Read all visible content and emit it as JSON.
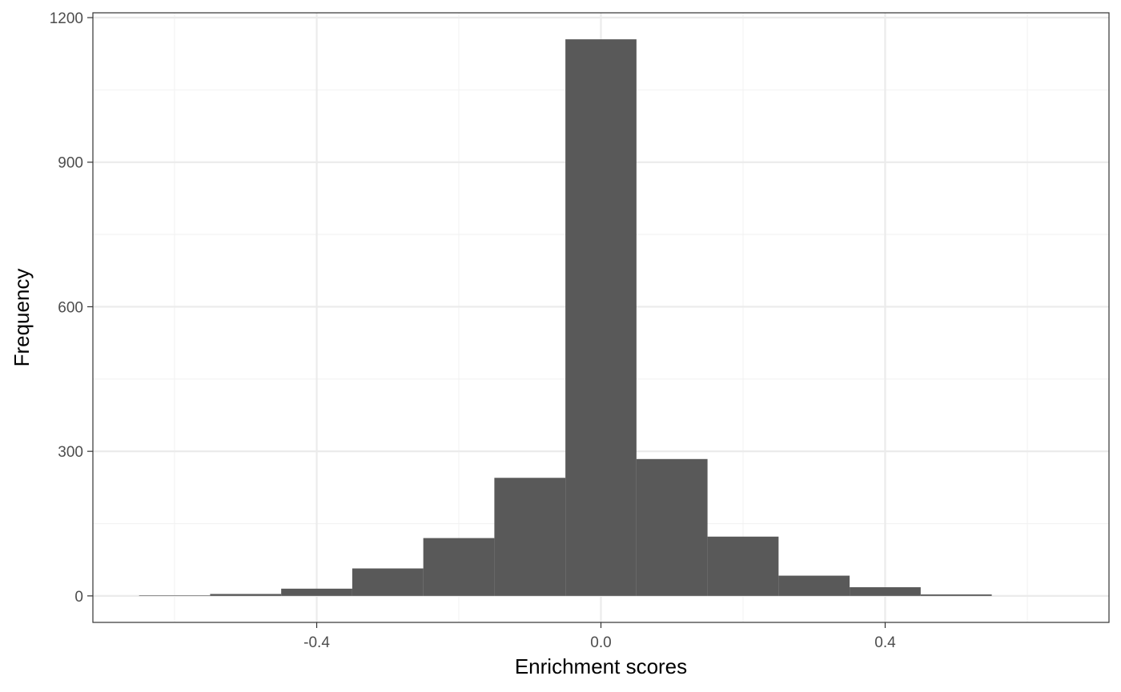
{
  "chart_data": {
    "type": "bar",
    "subtype": "histogram",
    "title": "",
    "xlabel": "Enrichment scores",
    "ylabel": "Frequency",
    "bins": [
      {
        "x0": -0.65,
        "x1": -0.55,
        "count": 1
      },
      {
        "x0": -0.55,
        "x1": -0.45,
        "count": 4
      },
      {
        "x0": -0.45,
        "x1": -0.35,
        "count": 15
      },
      {
        "x0": -0.35,
        "x1": -0.25,
        "count": 57
      },
      {
        "x0": -0.25,
        "x1": -0.15,
        "count": 120
      },
      {
        "x0": -0.15,
        "x1": -0.05,
        "count": 245
      },
      {
        "x0": -0.05,
        "x1": 0.05,
        "count": 1155
      },
      {
        "x0": 0.05,
        "x1": 0.15,
        "count": 284
      },
      {
        "x0": 0.15,
        "x1": 0.25,
        "count": 123
      },
      {
        "x0": 0.25,
        "x1": 0.35,
        "count": 42
      },
      {
        "x0": 0.35,
        "x1": 0.45,
        "count": 18
      },
      {
        "x0": 0.45,
        "x1": 0.55,
        "count": 3
      }
    ],
    "xlim": [
      -0.715,
      0.715
    ],
    "ylim": [
      -55,
      1210
    ],
    "x_ticks": [
      -0.4,
      0.0,
      0.4
    ],
    "x_tick_labels": [
      "-0.4",
      "0.0",
      "0.4"
    ],
    "x_minor_ticks": [
      -0.6,
      -0.2,
      0.2,
      0.6
    ],
    "y_ticks": [
      0,
      300,
      600,
      900,
      1200
    ],
    "y_tick_labels": [
      "0",
      "300",
      "600",
      "900",
      "1200"
    ],
    "y_minor_ticks": [
      150,
      450,
      750,
      1050
    ],
    "grid": true,
    "legend": "none",
    "bar_color": "#595959",
    "grid_major_color": "#ebebeb",
    "grid_minor_color": "#f2f2f2",
    "panel_border_color": "#333333"
  }
}
